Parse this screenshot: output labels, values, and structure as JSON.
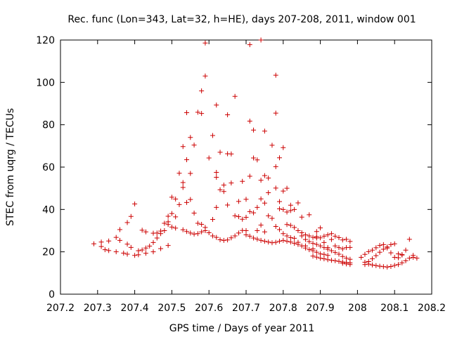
{
  "chart_data": {
    "type": "scatter",
    "title": "Rec. func (Lon=343, Lat=32, h=HE), days 207-208, 2011, window 001",
    "xlabel": "GPS time / Days of year 2011",
    "ylabel": "STEC from uqrg / TECUs",
    "xlim": [
      207.2,
      208.2
    ],
    "ylim": [
      0,
      120
    ],
    "xticks": [
      207.2,
      207.3,
      207.4,
      207.5,
      207.6,
      207.7,
      207.8,
      207.9,
      208,
      208.1,
      208.2
    ],
    "xtick_labels": [
      "207.2",
      "207.3",
      "207.4",
      "207.5",
      "207.6",
      "207.7",
      "207.8",
      "207.9",
      "208",
      "208.1",
      "208.2"
    ],
    "yticks": [
      0,
      20,
      40,
      60,
      80,
      100,
      120
    ],
    "ytick_labels": [
      "0",
      "20",
      "40",
      "60",
      "80",
      "100",
      "120"
    ],
    "marker": "+",
    "marker_color": "#cc0000",
    "series": [
      {
        "name": "STEC",
        "points": [
          [
            207.29,
            23.8
          ],
          [
            207.31,
            22.5
          ],
          [
            207.32,
            21.0
          ],
          [
            207.33,
            20.6
          ],
          [
            207.35,
            20.0
          ],
          [
            207.37,
            19.4
          ],
          [
            207.38,
            18.9
          ],
          [
            207.4,
            18.3
          ],
          [
            207.41,
            18.6
          ],
          [
            207.43,
            19.3
          ],
          [
            207.45,
            20.0
          ],
          [
            207.47,
            21.5
          ],
          [
            207.49,
            23.0
          ],
          [
            207.31,
            24.6
          ],
          [
            207.33,
            25.1
          ],
          [
            207.35,
            26.8
          ],
          [
            207.36,
            30.5
          ],
          [
            207.38,
            33.8
          ],
          [
            207.39,
            36.7
          ],
          [
            207.4,
            42.6
          ],
          [
            207.36,
            25.4
          ],
          [
            207.38,
            23.6
          ],
          [
            207.39,
            22.1
          ],
          [
            207.41,
            20.5
          ],
          [
            207.42,
            20.9
          ],
          [
            207.43,
            21.8
          ],
          [
            207.44,
            22.7
          ],
          [
            207.45,
            24.4
          ],
          [
            207.46,
            26.5
          ],
          [
            207.47,
            28.6
          ],
          [
            207.48,
            30.0
          ],
          [
            207.42,
            30.2
          ],
          [
            207.43,
            29.4
          ],
          [
            207.45,
            28.8
          ],
          [
            207.46,
            28.9
          ],
          [
            207.47,
            29.8
          ],
          [
            207.48,
            33.5
          ],
          [
            207.49,
            34.2
          ],
          [
            207.5,
            38.1
          ],
          [
            207.51,
            36.5
          ],
          [
            207.49,
            32.9
          ],
          [
            207.5,
            31.7
          ],
          [
            207.51,
            31.2
          ],
          [
            207.53,
            30.4
          ],
          [
            207.54,
            29.6
          ],
          [
            207.55,
            28.9
          ],
          [
            207.56,
            28.4
          ],
          [
            207.57,
            28.6
          ],
          [
            207.58,
            29.4
          ],
          [
            207.59,
            30.0
          ],
          [
            207.6,
            29.0
          ],
          [
            207.61,
            27.5
          ],
          [
            207.62,
            26.8
          ],
          [
            207.63,
            25.7
          ],
          [
            207.64,
            25.4
          ],
          [
            207.65,
            25.6
          ],
          [
            207.66,
            26.6
          ],
          [
            207.67,
            27.5
          ],
          [
            207.68,
            28.9
          ],
          [
            207.69,
            30.1
          ],
          [
            207.49,
            36.8
          ],
          [
            207.5,
            45.8
          ],
          [
            207.51,
            44.9
          ],
          [
            207.52,
            57.1
          ],
          [
            207.53,
            52.7
          ],
          [
            207.53,
            50.4
          ],
          [
            207.52,
            42.3
          ],
          [
            207.54,
            63.5
          ],
          [
            207.55,
            57.0
          ],
          [
            207.55,
            44.7
          ],
          [
            207.54,
            43.3
          ],
          [
            207.56,
            38.3
          ],
          [
            207.57,
            33.5
          ],
          [
            207.58,
            33.0
          ],
          [
            207.59,
            31.5
          ],
          [
            207.61,
            35.3
          ],
          [
            207.53,
            69.7
          ],
          [
            207.55,
            74.0
          ],
          [
            207.56,
            70.4
          ],
          [
            207.54,
            85.7
          ],
          [
            207.57,
            85.9
          ],
          [
            207.58,
            85.3
          ],
          [
            207.58,
            96.0
          ],
          [
            207.59,
            103.0
          ],
          [
            207.59,
            118.6
          ],
          [
            207.6,
            64.3
          ],
          [
            207.61,
            74.9
          ],
          [
            207.62,
            89.3
          ],
          [
            207.62,
            57.5
          ],
          [
            207.62,
            55.2
          ],
          [
            207.62,
            41.0
          ],
          [
            207.63,
            67.0
          ],
          [
            207.63,
            49.3
          ],
          [
            207.64,
            51.5
          ],
          [
            207.64,
            48.5
          ],
          [
            207.65,
            84.7
          ],
          [
            207.65,
            66.3
          ],
          [
            207.65,
            42.1
          ],
          [
            207.66,
            66.2
          ],
          [
            207.66,
            52.5
          ],
          [
            207.67,
            93.4
          ],
          [
            207.67,
            37.0
          ],
          [
            207.68,
            36.6
          ],
          [
            207.68,
            43.8
          ],
          [
            207.69,
            53.3
          ],
          [
            207.69,
            35.4
          ],
          [
            207.7,
            36.3
          ],
          [
            207.7,
            44.8
          ],
          [
            207.7,
            30.0
          ],
          [
            207.71,
            81.7
          ],
          [
            207.71,
            117.8
          ],
          [
            207.71,
            55.7
          ],
          [
            207.71,
            39.0
          ],
          [
            207.72,
            38.4
          ],
          [
            207.72,
            77.5
          ],
          [
            207.72,
            64.3
          ],
          [
            207.73,
            63.4
          ],
          [
            207.73,
            41.0
          ],
          [
            207.74,
            120.0
          ],
          [
            207.74,
            53.8
          ],
          [
            207.74,
            45.0
          ],
          [
            207.75,
            77.0
          ],
          [
            207.75,
            56.0
          ],
          [
            207.75,
            43.0
          ],
          [
            207.76,
            54.8
          ],
          [
            207.76,
            47.9
          ],
          [
            207.7,
            28.0
          ],
          [
            207.71,
            27.4
          ],
          [
            207.72,
            26.5
          ],
          [
            207.73,
            26.0
          ],
          [
            207.74,
            25.4
          ],
          [
            207.75,
            25.0
          ],
          [
            207.76,
            24.6
          ],
          [
            207.77,
            24.3
          ],
          [
            207.78,
            24.5
          ],
          [
            207.79,
            25.0
          ],
          [
            207.8,
            25.4
          ],
          [
            207.81,
            25.0
          ],
          [
            207.82,
            24.6
          ],
          [
            207.83,
            24.0
          ],
          [
            207.84,
            23.5
          ],
          [
            207.73,
            30.0
          ],
          [
            207.74,
            32.6
          ],
          [
            207.75,
            29.4
          ],
          [
            207.76,
            37.0
          ],
          [
            207.77,
            35.8
          ],
          [
            207.77,
            70.3
          ],
          [
            207.78,
            103.4
          ],
          [
            207.78,
            85.5
          ],
          [
            207.78,
            60.2
          ],
          [
            207.78,
            50.1
          ],
          [
            207.79,
            43.7
          ],
          [
            207.79,
            40.3
          ],
          [
            207.79,
            64.4
          ],
          [
            207.8,
            69.2
          ],
          [
            207.8,
            48.7
          ],
          [
            207.8,
            40.0
          ],
          [
            207.81,
            50.0
          ],
          [
            207.81,
            38.8
          ],
          [
            207.82,
            39.5
          ],
          [
            207.82,
            42.0
          ],
          [
            207.83,
            40.0
          ],
          [
            207.84,
            43.1
          ],
          [
            207.85,
            36.4
          ],
          [
            207.78,
            32.0
          ],
          [
            207.79,
            30.5
          ],
          [
            207.8,
            28.6
          ],
          [
            207.81,
            27.5
          ],
          [
            207.82,
            26.7
          ],
          [
            207.83,
            26.4
          ],
          [
            207.84,
            24.5
          ],
          [
            207.85,
            22.8
          ],
          [
            207.86,
            21.8
          ],
          [
            207.87,
            21.0
          ],
          [
            207.88,
            20.5
          ],
          [
            207.89,
            19.8
          ],
          [
            207.9,
            19.0
          ],
          [
            207.91,
            18.8
          ],
          [
            207.92,
            18.3
          ],
          [
            207.81,
            32.9
          ],
          [
            207.82,
            32.5
          ],
          [
            207.83,
            31.5
          ],
          [
            207.84,
            30.0
          ],
          [
            207.85,
            29.0
          ],
          [
            207.86,
            28.0
          ],
          [
            207.87,
            27.5
          ],
          [
            207.88,
            26.8
          ],
          [
            207.89,
            26.5
          ],
          [
            207.9,
            26.6
          ],
          [
            207.91,
            27.4
          ],
          [
            207.92,
            28.0
          ],
          [
            207.93,
            28.6
          ],
          [
            207.94,
            27.4
          ],
          [
            207.95,
            26.7
          ],
          [
            207.96,
            25.6
          ],
          [
            207.97,
            25.9
          ],
          [
            207.98,
            24.9
          ],
          [
            207.85,
            27.5
          ],
          [
            207.86,
            25.8
          ],
          [
            207.87,
            24.8
          ],
          [
            207.88,
            24.0
          ],
          [
            207.89,
            23.5
          ],
          [
            207.9,
            22.8
          ],
          [
            207.91,
            22.0
          ],
          [
            207.92,
            21.2
          ],
          [
            207.93,
            20.5
          ],
          [
            207.94,
            19.7
          ],
          [
            207.95,
            18.9
          ],
          [
            207.96,
            17.8
          ],
          [
            207.97,
            17.0
          ],
          [
            207.98,
            16.5
          ],
          [
            207.86,
            22.8
          ],
          [
            207.87,
            37.5
          ],
          [
            207.88,
            21.4
          ],
          [
            207.89,
            29.6
          ],
          [
            207.89,
            27.2
          ],
          [
            207.9,
            31.3
          ],
          [
            207.91,
            24.4
          ],
          [
            207.92,
            22.0
          ],
          [
            207.93,
            25.8
          ],
          [
            207.94,
            22.8
          ],
          [
            207.95,
            22.0
          ],
          [
            207.96,
            21.4
          ],
          [
            207.97,
            22.0
          ],
          [
            207.98,
            22.1
          ],
          [
            207.88,
            18.0
          ],
          [
            207.89,
            17.5
          ],
          [
            207.9,
            17.0
          ],
          [
            207.91,
            16.7
          ],
          [
            207.92,
            16.3
          ],
          [
            207.93,
            16.0
          ],
          [
            207.94,
            15.8
          ],
          [
            207.95,
            15.5
          ],
          [
            207.96,
            15.2
          ],
          [
            207.97,
            15.0
          ],
          [
            207.98,
            14.8
          ],
          [
            207.96,
            14.6
          ],
          [
            207.97,
            14.3
          ],
          [
            207.98,
            14.0
          ],
          [
            208.01,
            17.4
          ],
          [
            208.02,
            15.1
          ],
          [
            208.03,
            14.2
          ],
          [
            208.04,
            13.8
          ],
          [
            208.05,
            13.5
          ],
          [
            208.06,
            13.2
          ],
          [
            208.07,
            13.0
          ],
          [
            208.08,
            12.8
          ],
          [
            208.09,
            13.1
          ],
          [
            208.1,
            13.6
          ],
          [
            208.11,
            14.0
          ],
          [
            208.12,
            14.8
          ],
          [
            208.13,
            15.8
          ],
          [
            208.14,
            17.0
          ],
          [
            208.15,
            18.3
          ],
          [
            208.02,
            18.8
          ],
          [
            208.03,
            20.1
          ],
          [
            208.04,
            20.8
          ],
          [
            208.05,
            21.9
          ],
          [
            208.06,
            23.0
          ],
          [
            208.07,
            23.4
          ],
          [
            208.08,
            22.3
          ],
          [
            208.09,
            23.4
          ],
          [
            208.1,
            23.8
          ],
          [
            208.11,
            19.0
          ],
          [
            208.12,
            18.7
          ],
          [
            208.02,
            14.0
          ],
          [
            208.03,
            15.4
          ],
          [
            208.04,
            16.7
          ],
          [
            208.05,
            18.2
          ],
          [
            208.06,
            19.8
          ],
          [
            208.07,
            21.2
          ],
          [
            208.08,
            21.8
          ],
          [
            208.09,
            19.5
          ],
          [
            208.1,
            17.4
          ],
          [
            208.11,
            17.2
          ],
          [
            208.12,
            18.5
          ],
          [
            208.13,
            20.8
          ],
          [
            208.14,
            25.9
          ],
          [
            208.15,
            17.4
          ],
          [
            208.16,
            17.0
          ]
        ]
      }
    ]
  }
}
